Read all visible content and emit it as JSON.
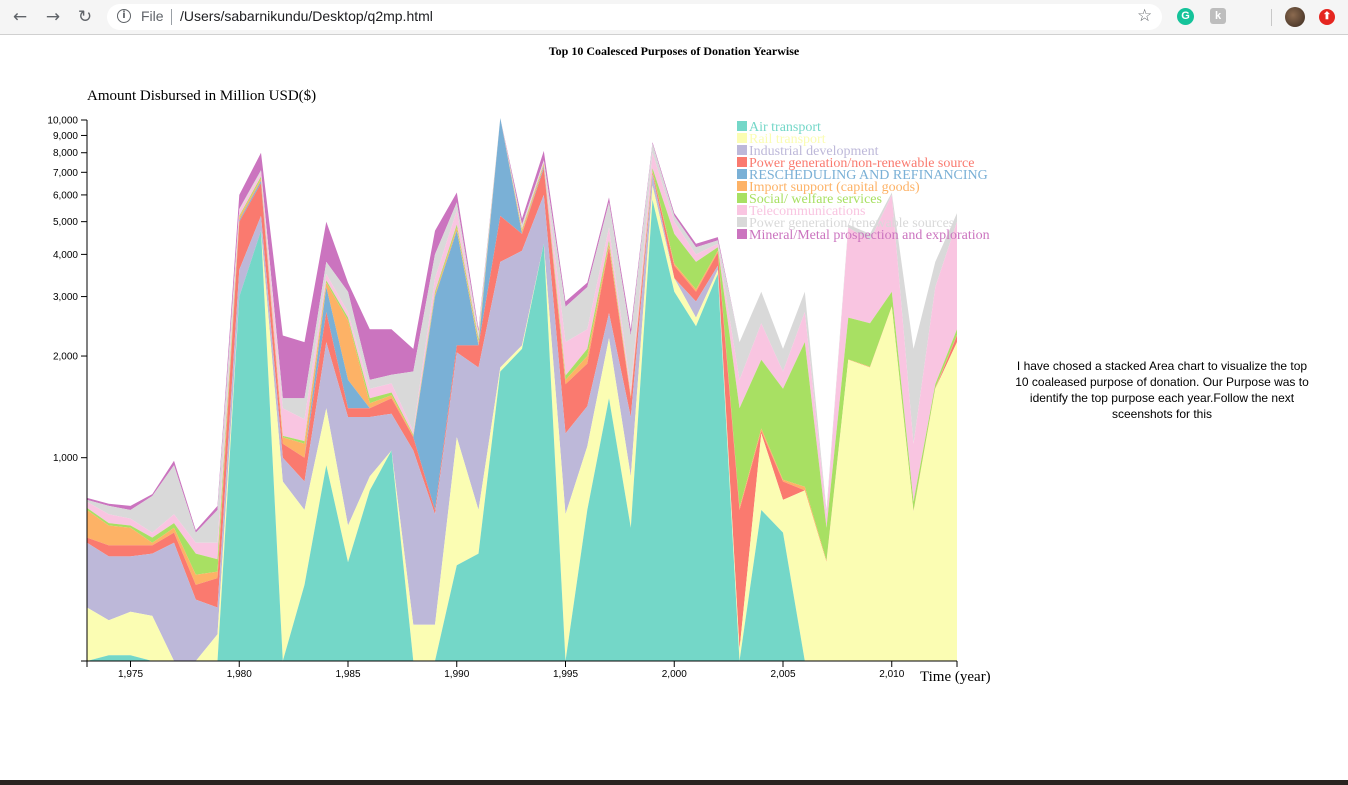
{
  "browser": {
    "scheme_label": "File",
    "url": "/Users/sabarnikundu/Desktop/q2mp.html",
    "back_glyph": "←",
    "forward_glyph": "→",
    "reload_glyph": "↻",
    "info_glyph": "i",
    "star_glyph": "☆",
    "grammarly_glyph": "G",
    "ext_k_glyph": "k",
    "ext_r_glyph": "⬆"
  },
  "page": {
    "title": "Top 10 Coalesced Purposes of Donation Yearwise",
    "note": "I have chosed a stacked Area chart to visualize the top 10 coaleased purpose of donation. Our Purpose was to identify the top purpose each year.Follow the next sceenshots for this"
  },
  "chart_data": {
    "type": "area",
    "stacked": true,
    "ylabel": "Amount Disbursed in Million USD($)",
    "xlabel": "Time (year)",
    "y_scale": "log",
    "ylim": [
      250,
      10000
    ],
    "xlim": [
      1973,
      2013
    ],
    "y_ticks": [
      1000,
      2000,
      3000,
      4000,
      5000,
      6000,
      7000,
      8000,
      9000,
      10000
    ],
    "y_tick_labels": [
      "1,000",
      "2,000",
      "3,000",
      "4,000",
      "5,000",
      "6,000",
      "7,000",
      "8,000",
      "9,000",
      "10,000"
    ],
    "x_ticks": [
      1975,
      1980,
      1985,
      1990,
      1995,
      2000,
      2005,
      2010
    ],
    "x_tick_labels": [
      "1,975",
      "1,980",
      "1,985",
      "1,990",
      "1,995",
      "2,000",
      "2,005",
      "2,010"
    ],
    "grid": false,
    "legend_position": "top-right",
    "x": [
      1973,
      1974,
      1975,
      1976,
      1977,
      1978,
      1979,
      1980,
      1981,
      1982,
      1983,
      1984,
      1985,
      1986,
      1987,
      1988,
      1989,
      1990,
      1991,
      1992,
      1993,
      1994,
      1995,
      1996,
      1997,
      1998,
      1999,
      2000,
      2001,
      2002,
      2003,
      2004,
      2005,
      2006,
      2007,
      2008,
      2009,
      2010,
      2011,
      2012,
      2013
    ],
    "series": [
      {
        "name": "Air transport",
        "color": "#74d7c8",
        "values": [
          0,
          260,
          260,
          0,
          0,
          0,
          0,
          3000,
          4700,
          0,
          420,
          950,
          490,
          800,
          1050,
          0,
          0,
          480,
          520,
          1800,
          2100,
          4300,
          0,
          700,
          1500,
          620,
          5800,
          3100,
          2450,
          3500,
          0,
          700,
          600,
          0,
          0,
          0,
          0,
          0,
          0,
          0,
          0
        ]
      },
      {
        "name": "Rail transport",
        "color": "#fbfdb3",
        "values": [
          360,
          330,
          350,
          340,
          0,
          0,
          300,
          3000,
          4700,
          850,
          700,
          1400,
          630,
          880,
          1050,
          320,
          320,
          1150,
          700,
          1850,
          2150,
          4300,
          680,
          1080,
          2260,
          880,
          6400,
          3400,
          2600,
          3600,
          270,
          1180,
          750,
          800,
          490,
          1950,
          1850,
          2800,
          690,
          1600,
          2200
        ]
      },
      {
        "name": "Industrial development",
        "color": "#bdb8d9",
        "values": [
          560,
          510,
          510,
          520,
          560,
          380,
          360,
          3600,
          5200,
          1000,
          850,
          2200,
          1320,
          1320,
          1350,
          1050,
          680,
          2050,
          1850,
          3800,
          4100,
          6000,
          1180,
          1420,
          2680,
          1320,
          6900,
          3400,
          2900,
          3700,
          270,
          1180,
          750,
          800,
          490,
          1950,
          1850,
          2800,
          690,
          1600,
          2200
        ]
      },
      {
        "name": "Power generation/non-renewable source",
        "color": "#fa7a6f",
        "values": [
          580,
          550,
          550,
          550,
          600,
          420,
          440,
          5000,
          6500,
          1100,
          1000,
          2700,
          1400,
          1400,
          1500,
          1150,
          700,
          2150,
          2150,
          5200,
          4600,
          7200,
          1650,
          1900,
          4200,
          1500,
          7000,
          3700,
          3100,
          4050,
          700,
          1200,
          850,
          800,
          490,
          1950,
          1850,
          2800,
          690,
          1600,
          2300
        ]
      },
      {
        "name": "RESCHEDULING AND REFINANCING",
        "color": "#7ab0d6",
        "values": [
          580,
          550,
          550,
          550,
          600,
          420,
          440,
          5050,
          6600,
          1100,
          1000,
          3200,
          1700,
          1400,
          1500,
          1150,
          3000,
          4700,
          2150,
          10500,
          4600,
          7300,
          1650,
          1900,
          4200,
          1500,
          7000,
          3700,
          3100,
          4050,
          700,
          1200,
          850,
          800,
          490,
          1950,
          1850,
          2800,
          690,
          1600,
          2300
        ]
      },
      {
        "name": "Import support (capital goods)",
        "color": "#fdb266",
        "values": [
          700,
          630,
          620,
          560,
          620,
          450,
          460,
          5150,
          6700,
          1150,
          1100,
          3300,
          2550,
          1450,
          1530,
          1160,
          3050,
          4800,
          2200,
          11000,
          4700,
          7400,
          1700,
          2000,
          4300,
          1520,
          7050,
          3750,
          3150,
          4100,
          710,
          1220,
          860,
          820,
          495,
          1955,
          1860,
          2810,
          695,
          1610,
          2310
        ]
      },
      {
        "name": "Social/ welfare services",
        "color": "#a8e063",
        "values": [
          710,
          640,
          630,
          580,
          640,
          520,
          500,
          5200,
          6800,
          1160,
          1120,
          3350,
          2600,
          1500,
          1560,
          1170,
          3100,
          4900,
          2250,
          11200,
          4750,
          7450,
          1750,
          2100,
          4400,
          1530,
          7200,
          4600,
          3800,
          4200,
          1400,
          1950,
          1600,
          2200,
          620,
          2600,
          2500,
          3100,
          740,
          1650,
          2400
        ]
      },
      {
        "name": "Telecommunications",
        "color": "#f9c5e1",
        "values": [
          740,
          680,
          660,
          600,
          680,
          560,
          560,
          5400,
          7000,
          1400,
          1300,
          3500,
          2700,
          1600,
          1660,
          1200,
          3400,
          5400,
          2300,
          11300,
          4800,
          7550,
          2200,
          2400,
          4800,
          1600,
          8000,
          5000,
          4000,
          4300,
          1700,
          2500,
          1800,
          2700,
          680,
          4800,
          4400,
          6000,
          1100,
          3200,
          5000
        ]
      },
      {
        "name": "Power generation/renewable sources",
        "color": "#d9d9d9",
        "values": [
          750,
          720,
          700,
          770,
          950,
          600,
          700,
          5450,
          7100,
          1500,
          1500,
          3800,
          3100,
          1700,
          1760,
          1800,
          4000,
          5700,
          2350,
          11400,
          4900,
          7600,
          2800,
          3200,
          5700,
          2300,
          8500,
          5200,
          4200,
          4400,
          2200,
          3100,
          2100,
          3100,
          700,
          4900,
          4600,
          6100,
          2100,
          3800,
          5300
        ]
      },
      {
        "name": "Mineral/Metal prospection and exploration",
        "color": "#cb74bf",
        "values": [
          760,
          730,
          720,
          780,
          980,
          610,
          720,
          6000,
          8000,
          2300,
          2200,
          5000,
          3300,
          2400,
          2400,
          2100,
          4700,
          6100,
          2400,
          11500,
          5100,
          8100,
          2900,
          3300,
          5900,
          2400,
          8600,
          5300,
          4300,
          4500,
          2200,
          3100,
          2100,
          3100,
          700,
          4900,
          4600,
          6100,
          2100,
          3800,
          5300
        ]
      }
    ]
  }
}
